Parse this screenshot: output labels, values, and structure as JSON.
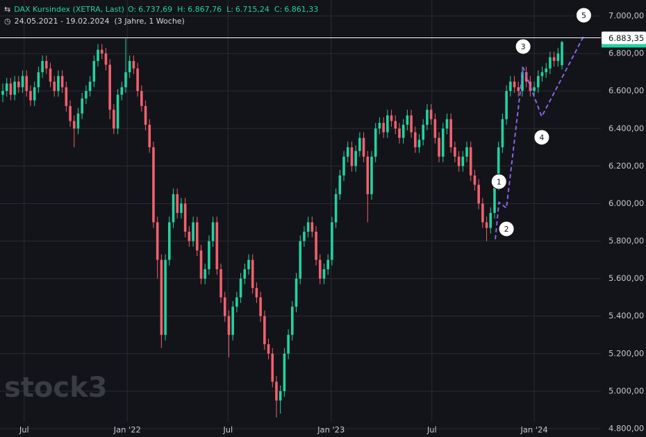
{
  "chart_data": {
    "type": "candlestick",
    "title": "DAX Kursindex (XETRA, Last)",
    "header": [
      {
        "key": "O:",
        "text": "6.737,69"
      },
      {
        "key": "H:",
        "text": "6.867,76"
      },
      {
        "key": "L:",
        "text": "6.715,24"
      },
      {
        "key": "C:",
        "text": "6.861,33"
      }
    ],
    "subtitle": "24.05.2021 - 19.02.2024  (3 Jahre, 1 Woche)",
    "watermark": "stock3",
    "up_color": "#22d3a0",
    "down_color": "#f2606e",
    "grid": true,
    "ylim": [
      4800,
      7000
    ],
    "yticks": [
      {
        "value": 7000,
        "label": "7.000,00"
      },
      {
        "value": 6800,
        "label": "6.800,00"
      },
      {
        "value": 6600,
        "label": "6.600,00"
      },
      {
        "value": 6400,
        "label": "6.400,00"
      },
      {
        "value": 6200,
        "label": "6.200,00"
      },
      {
        "value": 6000,
        "label": "6.000,00"
      },
      {
        "value": 5800,
        "label": "5.800,00"
      },
      {
        "value": 5600,
        "label": "5.600,00"
      },
      {
        "value": 5400,
        "label": "5.400,00"
      },
      {
        "value": 5200,
        "label": "5.200,00"
      },
      {
        "value": 5000,
        "label": "5.000,00"
      },
      {
        "value": 4800,
        "label": "4.800,00"
      }
    ],
    "xlim": [
      -0.7,
      150.8
    ],
    "xticks": [
      {
        "value": 5.4,
        "label": "Jul"
      },
      {
        "value": 31.4,
        "label": "Jan '22"
      },
      {
        "value": 56.8,
        "label": "Jul"
      },
      {
        "value": 82.8,
        "label": "Jan '23"
      },
      {
        "value": 108.2,
        "label": "Jul"
      },
      {
        "value": 134,
        "label": "Jan '24"
      }
    ],
    "price_line": {
      "value": 6883.35,
      "label": "6.883,35",
      "color": "#ffffff"
    },
    "wave_color": "#8a63e8",
    "wave": [
      {
        "x": 124.2,
        "y": 5810,
        "label": null
      },
      {
        "x": 125.1,
        "y": 6006,
        "label": "1"
      },
      {
        "x": 127,
        "y": 5976,
        "label": "2"
      },
      {
        "x": 131.2,
        "y": 6726,
        "label": "3"
      },
      {
        "x": 135.9,
        "y": 6464,
        "label": "4"
      },
      {
        "x": 146.5,
        "y": 6893,
        "label": "5"
      }
    ],
    "ohlc": [
      [
        6580,
        6640,
        6540,
        6600
      ],
      [
        6600,
        6670,
        6570,
        6640
      ],
      [
        6640,
        6670,
        6550,
        6580
      ],
      [
        6580,
        6680,
        6550,
        6650
      ],
      [
        6650,
        6680,
        6590,
        6620
      ],
      [
        6620,
        6710,
        6590,
        6680
      ],
      [
        6680,
        6710,
        6570,
        6600
      ],
      [
        6600,
        6630,
        6520,
        6550
      ],
      [
        6550,
        6650,
        6520,
        6620
      ],
      [
        6620,
        6730,
        6590,
        6700
      ],
      [
        6700,
        6790,
        6670,
        6760
      ],
      [
        6760,
        6790,
        6690,
        6720
      ],
      [
        6720,
        6750,
        6620,
        6650
      ],
      [
        6650,
        6680,
        6570,
        6600
      ],
      [
        6600,
        6710,
        6570,
        6680
      ],
      [
        6680,
        6710,
        6590,
        6620
      ],
      [
        6620,
        6650,
        6490,
        6520
      ],
      [
        6520,
        6550,
        6410,
        6440
      ],
      [
        6440,
        6470,
        6300,
        6400
      ],
      [
        6400,
        6510,
        6370,
        6480
      ],
      [
        6480,
        6590,
        6450,
        6560
      ],
      [
        6560,
        6630,
        6530,
        6600
      ],
      [
        6600,
        6680,
        6570,
        6650
      ],
      [
        6650,
        6790,
        6620,
        6760
      ],
      [
        6760,
        6850,
        6730,
        6820
      ],
      [
        6820,
        6850,
        6770,
        6800
      ],
      [
        6800,
        6830,
        6710,
        6740
      ],
      [
        6740,
        6770,
        6450,
        6500
      ],
      [
        6500,
        6530,
        6370,
        6400
      ],
      [
        6400,
        6610,
        6370,
        6580
      ],
      [
        6580,
        6650,
        6550,
        6620
      ],
      [
        6620,
        6880,
        6590,
        6700
      ],
      [
        6700,
        6790,
        6670,
        6760
      ],
      [
        6760,
        6790,
        6690,
        6720
      ],
      [
        6720,
        6750,
        6570,
        6600
      ],
      [
        6600,
        6630,
        6490,
        6520
      ],
      [
        6520,
        6550,
        6390,
        6420
      ],
      [
        6420,
        6450,
        6270,
        6300
      ],
      [
        6300,
        6330,
        5870,
        5900
      ],
      [
        5900,
        5930,
        5600,
        5700
      ],
      [
        5700,
        5730,
        5230,
        5300
      ],
      [
        5300,
        5730,
        5270,
        5700
      ],
      [
        5700,
        5930,
        5670,
        5900
      ],
      [
        5900,
        6080,
        5870,
        6050
      ],
      [
        6050,
        6080,
        5920,
        5950
      ],
      [
        5950,
        6030,
        5920,
        6000
      ],
      [
        6000,
        6030,
        5820,
        5850
      ],
      [
        5850,
        5880,
        5770,
        5800
      ],
      [
        5800,
        5930,
        5770,
        5900
      ],
      [
        5900,
        5930,
        5720,
        5750
      ],
      [
        5750,
        5780,
        5570,
        5600
      ],
      [
        5600,
        5680,
        5570,
        5650
      ],
      [
        5650,
        5830,
        5620,
        5800
      ],
      [
        5800,
        5930,
        5770,
        5900
      ],
      [
        5900,
        5930,
        5620,
        5650
      ],
      [
        5650,
        5680,
        5470,
        5500
      ],
      [
        5500,
        5530,
        5370,
        5400
      ],
      [
        5400,
        5430,
        5180,
        5300
      ],
      [
        5300,
        5480,
        5270,
        5450
      ],
      [
        5450,
        5530,
        5420,
        5500
      ],
      [
        5500,
        5630,
        5470,
        5600
      ],
      [
        5600,
        5680,
        5570,
        5650
      ],
      [
        5650,
        5730,
        5620,
        5700
      ],
      [
        5700,
        5730,
        5520,
        5550
      ],
      [
        5550,
        5580,
        5470,
        5500
      ],
      [
        5500,
        5530,
        5370,
        5400
      ],
      [
        5400,
        5430,
        5220,
        5250
      ],
      [
        5250,
        5280,
        5170,
        5200
      ],
      [
        5200,
        5230,
        5020,
        5050
      ],
      [
        5050,
        5080,
        4860,
        4950
      ],
      [
        4950,
        5030,
        4880,
        5000
      ],
      [
        5000,
        5230,
        4970,
        5200
      ],
      [
        5200,
        5330,
        5170,
        5300
      ],
      [
        5300,
        5480,
        5270,
        5450
      ],
      [
        5450,
        5630,
        5420,
        5600
      ],
      [
        5600,
        5830,
        5570,
        5800
      ],
      [
        5800,
        5880,
        5770,
        5850
      ],
      [
        5850,
        5930,
        5820,
        5900
      ],
      [
        5900,
        5930,
        5820,
        5850
      ],
      [
        5850,
        5880,
        5670,
        5700
      ],
      [
        5700,
        5730,
        5570,
        5600
      ],
      [
        5600,
        5680,
        5570,
        5650
      ],
      [
        5650,
        5730,
        5620,
        5700
      ],
      [
        5700,
        5930,
        5670,
        5900
      ],
      [
        5900,
        6080,
        5870,
        6050
      ],
      [
        6050,
        6180,
        6020,
        6150
      ],
      [
        6150,
        6280,
        6120,
        6250
      ],
      [
        6250,
        6330,
        6220,
        6300
      ],
      [
        6300,
        6330,
        6170,
        6200
      ],
      [
        6200,
        6310,
        6170,
        6280
      ],
      [
        6280,
        6380,
        6250,
        6350
      ],
      [
        6350,
        6380,
        6220,
        6250
      ],
      [
        6250,
        6280,
        5900,
        6050
      ],
      [
        6050,
        6280,
        6020,
        6250
      ],
      [
        6250,
        6430,
        6220,
        6400
      ],
      [
        6400,
        6460,
        6370,
        6430
      ],
      [
        6430,
        6460,
        6350,
        6380
      ],
      [
        6380,
        6500,
        6350,
        6470
      ],
      [
        6470,
        6500,
        6410,
        6440
      ],
      [
        6440,
        6470,
        6370,
        6400
      ],
      [
        6400,
        6430,
        6320,
        6350
      ],
      [
        6350,
        6450,
        6320,
        6420
      ],
      [
        6420,
        6500,
        6390,
        6470
      ],
      [
        6470,
        6500,
        6350,
        6380
      ],
      [
        6380,
        6410,
        6270,
        6300
      ],
      [
        6300,
        6370,
        6270,
        6340
      ],
      [
        6340,
        6450,
        6310,
        6420
      ],
      [
        6420,
        6530,
        6390,
        6500
      ],
      [
        6500,
        6530,
        6420,
        6450
      ],
      [
        6450,
        6480,
        6320,
        6350
      ],
      [
        6350,
        6380,
        6220,
        6250
      ],
      [
        6250,
        6430,
        6220,
        6400
      ],
      [
        6400,
        6480,
        6370,
        6450
      ],
      [
        6450,
        6480,
        6270,
        6300
      ],
      [
        6300,
        6330,
        6220,
        6250
      ],
      [
        6250,
        6280,
        6170,
        6200
      ],
      [
        6200,
        6280,
        6170,
        6250
      ],
      [
        6250,
        6330,
        6220,
        6300
      ],
      [
        6300,
        6330,
        6120,
        6150
      ],
      [
        6150,
        6180,
        6070,
        6100
      ],
      [
        6100,
        6130,
        5970,
        6000
      ],
      [
        6000,
        6030,
        5870,
        5900
      ],
      [
        5900,
        5930,
        5800,
        5870
      ],
      [
        5870,
        5980,
        5840,
        5950
      ],
      [
        5950,
        6130,
        5920,
        6100
      ],
      [
        6100,
        6330,
        6070,
        6300
      ],
      [
        6300,
        6480,
        6270,
        6450
      ],
      [
        6450,
        6630,
        6420,
        6600
      ],
      [
        6600,
        6680,
        6570,
        6650
      ],
      [
        6650,
        6680,
        6590,
        6620
      ],
      [
        6620,
        6650,
        6570,
        6600
      ],
      [
        6600,
        6730,
        6570,
        6700
      ],
      [
        6700,
        6730,
        6620,
        6650
      ],
      [
        6650,
        6680,
        6570,
        6600
      ],
      [
        6600,
        6650,
        6570,
        6620
      ],
      [
        6620,
        6710,
        6590,
        6680
      ],
      [
        6680,
        6730,
        6650,
        6700
      ],
      [
        6700,
        6750,
        6670,
        6720
      ],
      [
        6720,
        6810,
        6690,
        6780
      ],
      [
        6780,
        6810,
        6730,
        6760
      ],
      [
        6760,
        6830,
        6730,
        6800
      ],
      [
        6737.69,
        6867.76,
        6715.24,
        6861.33
      ]
    ]
  }
}
